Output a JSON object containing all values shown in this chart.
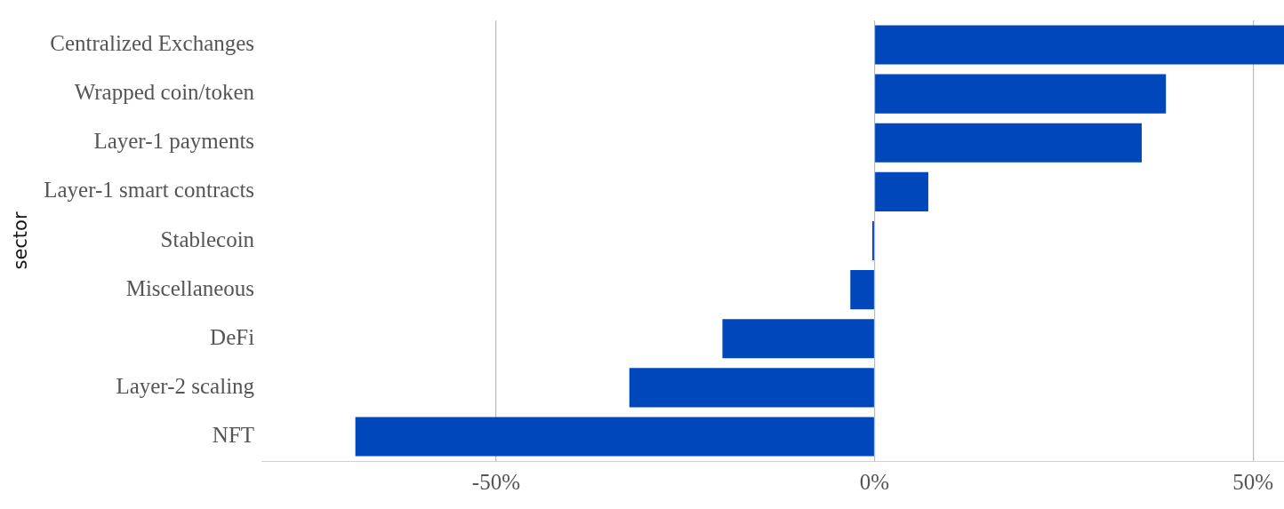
{
  "chart_data": {
    "type": "bar",
    "orientation": "horizontal",
    "ylabel": "sector",
    "categories": [
      "Centralized Exchanges",
      "Wrapped coin/token",
      "Layer-1 payments",
      "Layer-1 smart contracts",
      "Stablecoin",
      "Miscellaneous",
      "DeFi",
      "Layer-2 scaling",
      "NFT"
    ],
    "values": [
      54.1,
      38.5,
      35.3,
      7.1,
      -0.3,
      -3.2,
      -20.1,
      -32.4,
      -68.6
    ],
    "color": "#0047bb",
    "xlim": [
      -81,
      54.1
    ],
    "xticks": [
      {
        "value": -50,
        "label": "-50%"
      },
      {
        "value": 0,
        "label": "0%"
      },
      {
        "value": 50,
        "label": "50%"
      }
    ],
    "grid": "x",
    "legend": false
  }
}
